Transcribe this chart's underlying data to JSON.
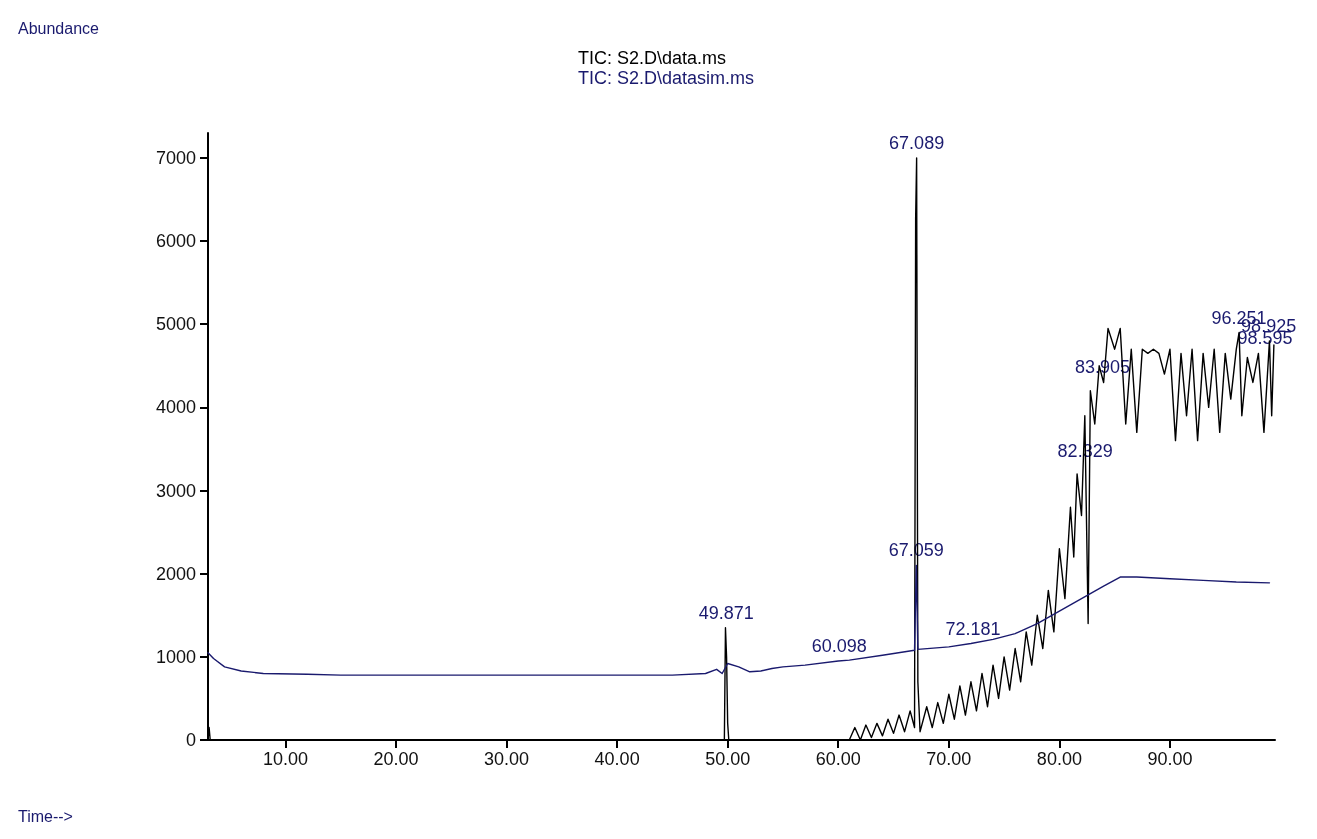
{
  "chart_data": {
    "type": "line",
    "xlim": [
      3,
      99.5
    ],
    "ylim": [
      0,
      7300
    ],
    "xticks": [
      {
        "value": 10,
        "label": "10.00"
      },
      {
        "value": 20,
        "label": "20.00"
      },
      {
        "value": 30,
        "label": "30.00"
      },
      {
        "value": 40,
        "label": "40.00"
      },
      {
        "value": 50,
        "label": "50.00"
      },
      {
        "value": 60,
        "label": "60.00"
      },
      {
        "value": 70,
        "label": "70.00"
      },
      {
        "value": 80,
        "label": "80.00"
      },
      {
        "value": 90,
        "label": "90.00"
      }
    ],
    "yticks": [
      0,
      1000,
      2000,
      3000,
      4000,
      5000,
      6000,
      7000
    ],
    "grid": false,
    "legend": "top",
    "marker": "none",
    "line_style": "solid",
    "series": [
      {
        "name": "TIC: S2.D\\data.ms",
        "color": "#000000",
        "x": [
          3,
          3.1,
          3.2,
          49.7,
          49.8,
          49.9,
          50.0,
          50.1,
          61,
          61.5,
          62,
          62.5,
          63,
          63.5,
          64,
          64.5,
          65,
          65.5,
          66,
          66.5,
          66.9,
          67.0,
          67.089,
          67.2,
          67.4,
          68,
          68.5,
          69,
          69.5,
          70,
          70.5,
          71,
          71.5,
          72,
          72.5,
          73,
          73.5,
          74,
          74.5,
          75,
          75.5,
          76,
          76.5,
          77,
          77.5,
          78,
          78.5,
          79,
          79.5,
          80,
          80.5,
          81,
          81.3,
          81.6,
          82,
          82.3,
          82.6,
          82.8,
          83.2,
          83.6,
          84,
          84.4,
          85,
          85.5,
          86,
          86.5,
          87,
          87.5,
          88,
          88.5,
          89,
          89.5,
          90,
          90.5,
          91,
          91.5,
          92,
          92.5,
          93,
          93.5,
          94,
          94.5,
          95,
          95.5,
          96,
          96.251,
          96.5,
          97,
          97.5,
          98,
          98.5,
          99,
          99.2,
          99.4
        ],
        "values": [
          0,
          150,
          0,
          0,
          1350,
          1000,
          200,
          0,
          0,
          150,
          0,
          180,
          30,
          200,
          50,
          250,
          80,
          300,
          100,
          350,
          150,
          6280,
          7000,
          700,
          100,
          400,
          150,
          450,
          200,
          550,
          250,
          650,
          300,
          700,
          350,
          800,
          400,
          900,
          500,
          1000,
          600,
          1100,
          700,
          1300,
          900,
          1500,
          1100,
          1800,
          1300,
          2300,
          1700,
          2800,
          2200,
          3200,
          2700,
          3900,
          1400,
          4200,
          3800,
          4500,
          4300,
          4950,
          4700,
          4950,
          3800,
          4700,
          3700,
          4700,
          4650,
          4700,
          4650,
          4400,
          4700,
          3600,
          4650,
          3900,
          4700,
          3600,
          4650,
          4000,
          4700,
          3700,
          4650,
          4100,
          4700,
          4900,
          3900,
          4600,
          4300,
          4650,
          3700,
          4800,
          3900,
          4750
        ]
      },
      {
        "name": "TIC: S2.D\\datasim.ms",
        "color": "#1a1a6e",
        "x": [
          3,
          3.5,
          4.5,
          6,
          8,
          12,
          15,
          25,
          35,
          45,
          48,
          49,
          49.5,
          50,
          51,
          52,
          53,
          54,
          55,
          57,
          60,
          61,
          64,
          66.9,
          67.059,
          67.2,
          70,
          72,
          74,
          76,
          78,
          80,
          82,
          84,
          85.5,
          87,
          90,
          93,
          96,
          99
        ],
        "values": [
          1050,
          980,
          880,
          830,
          800,
          790,
          780,
          780,
          780,
          780,
          800,
          850,
          800,
          920,
          880,
          820,
          830,
          860,
          880,
          900,
          950,
          960,
          1020,
          1080,
          2100,
          1090,
          1120,
          1160,
          1210,
          1280,
          1400,
          1550,
          1700,
          1850,
          1960,
          1960,
          1940,
          1920,
          1900,
          1890
        ]
      }
    ],
    "annotations": [
      "Abundance",
      "Time-->",
      {
        "text": "67.089",
        "x": 67.089,
        "y": 7000
      },
      {
        "text": "67.059",
        "x": 67.059,
        "y": 2100
      },
      {
        "text": "49.871",
        "x": 49.871,
        "y": 1350
      },
      {
        "text": "60.098",
        "x": 60.098,
        "y": 950
      },
      {
        "text": "72.181",
        "x": 72.181,
        "y": 1160
      },
      {
        "text": "82.329",
        "x": 82.329,
        "y": 3300
      },
      {
        "text": "83.905",
        "x": 83.905,
        "y": 4300
      },
      {
        "text": "96.251",
        "x": 96.251,
        "y": 4900
      },
      {
        "text": "98.925",
        "x": 98.925,
        "y": 4800
      },
      {
        "text": "98.595",
        "x": 98.595,
        "y": 4650
      }
    ]
  }
}
